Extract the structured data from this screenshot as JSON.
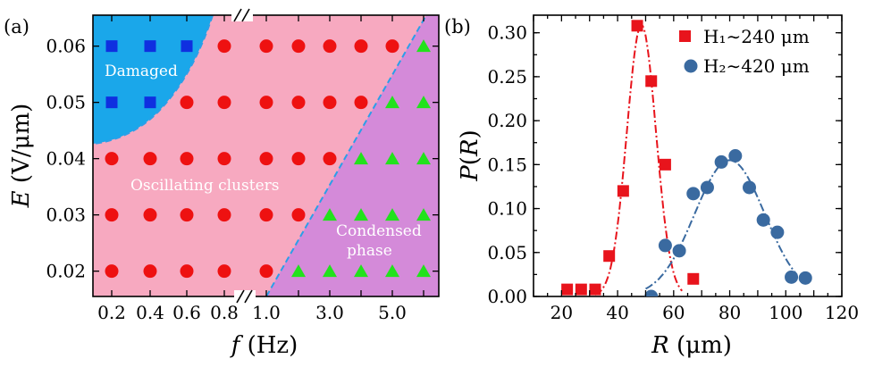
{
  "colors": {
    "damaged": "#1aa7ea",
    "oscillating": "#f7a9c0",
    "condensed": "#d48ad9",
    "boundary": "#2b9fe8",
    "square_marker": "#0f2fe0",
    "circle_marker": "#ee1111",
    "triangle_marker": "#22e21c",
    "series1": "#e8141c",
    "series2": "#3a6aa0"
  },
  "chart_data": [
    {
      "type": "scatter",
      "panel_label": "(a)",
      "title": "",
      "xlabel": "f (Hz)",
      "ylabel": "E (V/μm)",
      "x_tick_labels": [
        "0.2",
        "0.4",
        "0.6",
        "0.8",
        "1.0",
        "3.0",
        "5.0"
      ],
      "x_positions": [
        "0.2",
        "0.4",
        "0.6",
        "0.8",
        "1.0",
        "2.0",
        "3.0",
        "4.0",
        "5.0",
        "6.0"
      ],
      "axis_break": "//",
      "y_ticks": [
        "0.02",
        "0.03",
        "0.04",
        "0.05",
        "0.06"
      ],
      "ylim": [
        0.0155,
        0.0655
      ],
      "regions": [
        {
          "name": "Damaged",
          "label": "Damaged"
        },
        {
          "name": "Oscillating clusters",
          "label": "Oscillating clusters"
        },
        {
          "name": "Condensed phase",
          "label_lines": [
            "Condensed",
            "phase"
          ]
        }
      ],
      "series": [
        {
          "name": "Damaged",
          "marker": "square",
          "points": [
            [
              "0.2",
              0.06
            ],
            [
              "0.4",
              0.06
            ],
            [
              "0.6",
              0.06
            ],
            [
              "0.2",
              0.05
            ],
            [
              "0.4",
              0.05
            ]
          ]
        },
        {
          "name": "Oscillating clusters",
          "marker": "circle",
          "points": [
            [
              "0.8",
              0.06
            ],
            [
              "1.0",
              0.06
            ],
            [
              "2.0",
              0.06
            ],
            [
              "3.0",
              0.06
            ],
            [
              "4.0",
              0.06
            ],
            [
              "5.0",
              0.06
            ],
            [
              "0.6",
              0.05
            ],
            [
              "0.8",
              0.05
            ],
            [
              "1.0",
              0.05
            ],
            [
              "2.0",
              0.05
            ],
            [
              "3.0",
              0.05
            ],
            [
              "4.0",
              0.05
            ],
            [
              "0.2",
              0.04
            ],
            [
              "0.4",
              0.04
            ],
            [
              "0.6",
              0.04
            ],
            [
              "0.8",
              0.04
            ],
            [
              "1.0",
              0.04
            ],
            [
              "2.0",
              0.04
            ],
            [
              "3.0",
              0.04
            ],
            [
              "0.2",
              0.03
            ],
            [
              "0.4",
              0.03
            ],
            [
              "0.6",
              0.03
            ],
            [
              "0.8",
              0.03
            ],
            [
              "1.0",
              0.03
            ],
            [
              "2.0",
              0.03
            ],
            [
              "0.2",
              0.02
            ],
            [
              "0.4",
              0.02
            ],
            [
              "0.6",
              0.02
            ],
            [
              "0.8",
              0.02
            ],
            [
              "1.0",
              0.02
            ]
          ]
        },
        {
          "name": "Condensed phase",
          "marker": "triangle",
          "points": [
            [
              "6.0",
              0.06
            ],
            [
              "5.0",
              0.05
            ],
            [
              "6.0",
              0.05
            ],
            [
              "4.0",
              0.04
            ],
            [
              "5.0",
              0.04
            ],
            [
              "6.0",
              0.04
            ],
            [
              "3.0",
              0.03
            ],
            [
              "4.0",
              0.03
            ],
            [
              "5.0",
              0.03
            ],
            [
              "6.0",
              0.03
            ],
            [
              "2.0",
              0.02
            ],
            [
              "3.0",
              0.02
            ],
            [
              "4.0",
              0.02
            ],
            [
              "5.0",
              0.02
            ],
            [
              "6.0",
              0.02
            ]
          ]
        }
      ]
    },
    {
      "type": "scatter",
      "panel_label": "(b)",
      "title": "",
      "xlabel": "R (μm)",
      "ylabel": "P(R)",
      "xlim": [
        10,
        120
      ],
      "ylim": [
        0,
        0.32
      ],
      "x_ticks": [
        20,
        40,
        60,
        80,
        100,
        120
      ],
      "y_ticks": [
        "0.00",
        "0.05",
        "0.10",
        "0.15",
        "0.20",
        "0.25",
        "0.30"
      ],
      "legend_position": "top-right",
      "series": [
        {
          "name": "H1 ~ 240 μm",
          "legend": "H₁∼240 μm",
          "marker": "square",
          "x": [
            22,
            27,
            32,
            37,
            42,
            47,
            52,
            57,
            67
          ],
          "y": [
            0.008,
            0.008,
            0.008,
            0.046,
            0.12,
            0.308,
            0.245,
            0.15,
            0.02
          ],
          "fit": {
            "kind": "gaussian",
            "amplitude": 0.309,
            "mean": 48.5,
            "sigma": 5.2,
            "x_range": [
              32,
              63
            ]
          }
        },
        {
          "name": "H2 ~ 420 μm",
          "legend": "H₂∼420 μm",
          "marker": "circle",
          "x": [
            52,
            57,
            62,
            67,
            72,
            77,
            82,
            87,
            92,
            97,
            102,
            107
          ],
          "y": [
            0.0,
            0.058,
            0.052,
            0.117,
            0.124,
            0.153,
            0.16,
            0.124,
            0.087,
            0.073,
            0.022,
            0.021
          ],
          "fit": {
            "kind": "gaussian",
            "amplitude": 0.155,
            "mean": 80,
            "sigma": 12.5,
            "x_range": [
              50,
              104
            ]
          }
        }
      ]
    }
  ]
}
